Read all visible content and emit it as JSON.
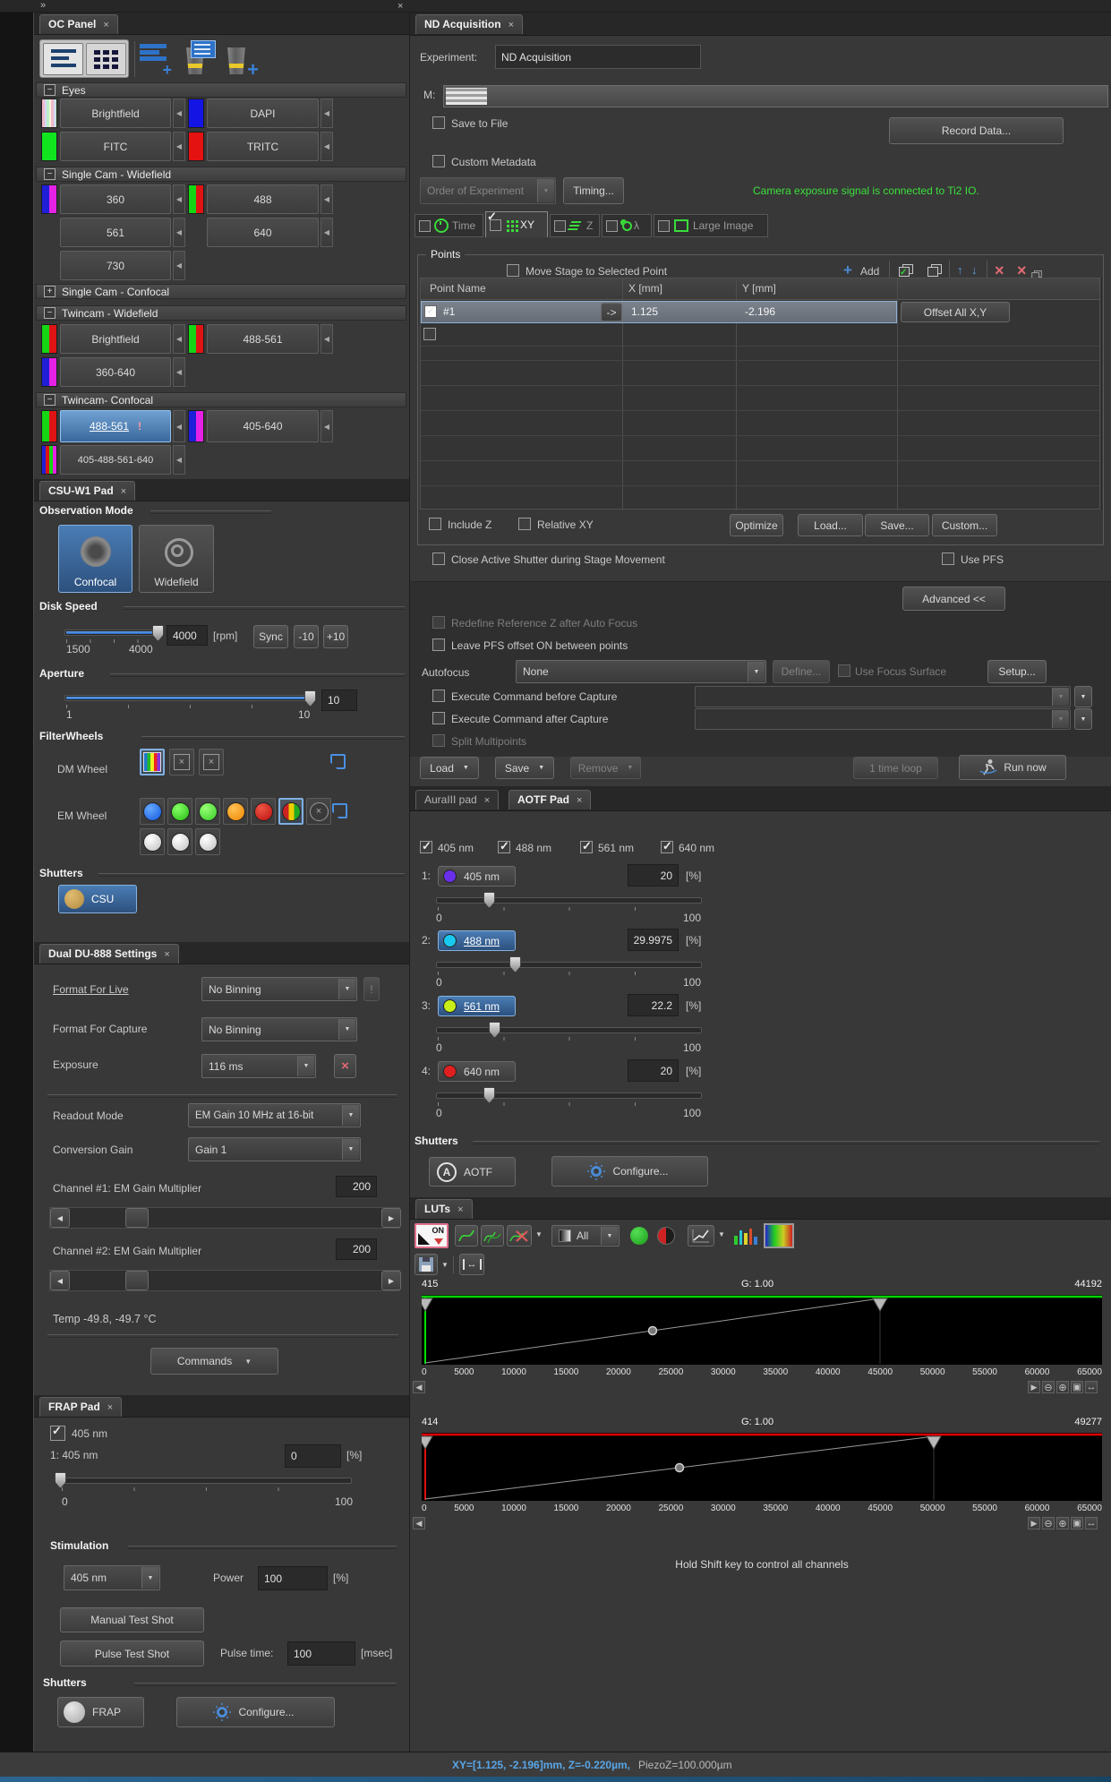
{
  "icons": {
    "collapse": "»",
    "close": "×",
    "prev": "◀",
    "dropdown": "▼",
    "plus": "+",
    "up": "↑",
    "down": "↓",
    "cross": "×",
    "goto": "->",
    "warn": "!",
    "scroll_left": "◀",
    "scroll_right": "▶",
    "zoom_out": "⊖",
    "zoom_in": "⊕",
    "expand": "▣",
    "fit": "↔",
    "minus_box": "−",
    "plus_box": "+",
    "circled_a": "A",
    "advanced_arrows": "<<",
    "on_label": "ON"
  },
  "colors": {
    "selection_blue": "#3f6f9f",
    "selection_border": "#8fc0f0",
    "green_status": "#3be03b",
    "status_xy_blue": "#58a6e8",
    "hist_green": "#00d400",
    "hist_red": "#e00000",
    "laser_405": "#6a2fe8",
    "laser_488": "#18c8f0",
    "laser_561": "#c8f018",
    "laser_640": "#e02020",
    "csu_shutter_gold": "#c9a34f",
    "accent_blue": "#4a8ad4"
  },
  "oc_panel": {
    "tab": "OC Panel",
    "close": "×",
    "groups": {
      "eyes": "Eyes",
      "single_widefield": "Single Cam - Widefield",
      "single_confocal": "Single Cam - Confocal",
      "twincam_widefield": "Twincam - Widefield",
      "twincam_confocal": "Twincam- Confocal"
    },
    "buttons": {
      "brightfield": "Brightfield",
      "dapi": "DAPI",
      "fitc": "FITC",
      "tritc": "TRITC",
      "w360": "360",
      "w488": "488",
      "w561": "561",
      "w640": "640",
      "w730": "730",
      "tw_brightfield": "Brightfield",
      "tw_488_561": "488-561",
      "tw_360_640": "360-640",
      "tc_488_561": "488-561",
      "tc_alert": "!",
      "tc_405_640": "405-640",
      "tc_405_488_561_640": "405-488-561-640"
    }
  },
  "csu": {
    "tab": "CSU-W1 Pad",
    "close": "×",
    "observation_mode": "Observation Mode",
    "confocal": "Confocal",
    "widefield": "Widefield",
    "disk_speed": {
      "label": "Disk Speed",
      "min": "1500",
      "max": "4000",
      "value": "4000",
      "unit": "[rpm]",
      "sync": "Sync",
      "minus": "-10",
      "plus": "+10"
    },
    "aperture": {
      "label": "Aperture",
      "min": "1",
      "max": "10",
      "value": "10"
    },
    "filterwheels": {
      "label": "FilterWheels",
      "dm": "DM Wheel",
      "em": "EM Wheel"
    },
    "shutters": {
      "label": "Shutters",
      "csu": "CSU"
    }
  },
  "du888": {
    "tab": "Dual DU-888 Settings",
    "close": "×",
    "format_live": {
      "label": "Format For Live",
      "value": "No Binning"
    },
    "format_capture": {
      "label": "Format For Capture",
      "value": "No Binning"
    },
    "exposure": {
      "label": "Exposure",
      "value": "116 ms"
    },
    "readout": {
      "label": "Readout Mode",
      "value": "EM Gain 10 MHz at 16-bit"
    },
    "conversion": {
      "label": "Conversion Gain",
      "value": "Gain 1"
    },
    "ch1": {
      "label": "Channel #1: EM Gain Multiplier",
      "value": "200"
    },
    "ch2": {
      "label": "Channel #2: EM Gain Multiplier",
      "value": "200"
    },
    "temp": "Temp -49.8, -49.7 °C",
    "commands": "Commands"
  },
  "frap": {
    "tab": "FRAP Pad",
    "close": "×",
    "laser": "405 nm",
    "line": "1: 405 nm",
    "value": "0",
    "pct": "[%]",
    "min": "0",
    "max": "100",
    "stimulation": "Stimulation",
    "combo": "405 nm",
    "power_label": "Power",
    "power": "100",
    "manual": "Manual Test Shot",
    "pulse": "Pulse Test Shot",
    "pulse_time_label": "Pulse time:",
    "pulse_time": "100",
    "pulse_unit": "[msec]",
    "shutters": "Shutters",
    "frap_btn": "FRAP",
    "configure": "Configure..."
  },
  "nd": {
    "tab": "ND Acquisition",
    "close": "×",
    "experiment_label": "Experiment:",
    "experiment": "ND Acquisition",
    "m_label": "M:",
    "save_to_file": "Save to File",
    "record": "Record Data...",
    "custom_metadata": "Custom Metadata",
    "order": "Order of Experiment",
    "timing": "Timing...",
    "status_green": "Camera exposure signal is connected to Ti2 IO.",
    "tabs": {
      "time": "Time",
      "xy": "XY",
      "z": "Z",
      "lambda": "λ",
      "large": "Large Image"
    },
    "points": {
      "title": "Points",
      "move_stage": "Move Stage to Selected Point",
      "add": "Add",
      "col_name": "Point Name",
      "col_x": "X [mm]",
      "col_y": "Y [mm]",
      "row": {
        "name": "#1",
        "goto": "->",
        "x": "1.125",
        "y": "-2.196",
        "offset": "Offset All X,Y"
      },
      "include_z": "Include Z",
      "relative_xy": "Relative XY",
      "optimize": "Optimize",
      "load": "Load...",
      "save": "Save...",
      "custom": "Custom..."
    },
    "close_shutter": "Close Active Shutter during Stage Movement",
    "use_pfs": "Use PFS",
    "advanced": "Advanced <<",
    "redefine": "Redefine Reference Z after Auto Focus",
    "leave_pfs": "Leave PFS offset ON between points",
    "autofocus_label": "Autofocus",
    "autofocus": "None",
    "define": "Define...",
    "use_focus_surface": "Use Focus Surface",
    "setup": "Setup...",
    "exec_before": "Execute Command before Capture",
    "exec_after": "Execute Command after Capture",
    "split": "Split Multipoints",
    "load2": "Load",
    "save2": "Save",
    "remove": "Remove",
    "loop": "1 time loop",
    "run": "Run now"
  },
  "aotf": {
    "tab_aura": "AuraIII pad",
    "tab_aotf": "AOTF Pad",
    "close": "×",
    "checks": [
      "405 nm",
      "488 nm",
      "561 nm",
      "640 nm"
    ],
    "channels": [
      {
        "idx": "1:",
        "label": "405 nm",
        "value": "20",
        "pct": "[%]",
        "min": "0",
        "max": "100",
        "percent": 20,
        "selected": false,
        "color": "#6a2fe8"
      },
      {
        "idx": "2:",
        "label": "488 nm",
        "value": "29.9975",
        "pct": "[%]",
        "min": "0",
        "max": "100",
        "percent": 30,
        "selected": true,
        "color": "#18c8f0"
      },
      {
        "idx": "3:",
        "label": "561 nm",
        "value": "22.2",
        "pct": "[%]",
        "min": "0",
        "max": "100",
        "percent": 22,
        "selected": true,
        "color": "#c8f018"
      },
      {
        "idx": "4:",
        "label": "640 nm",
        "value": "20",
        "pct": "[%]",
        "min": "0",
        "max": "100",
        "percent": 20,
        "selected": false,
        "color": "#e02020"
      }
    ],
    "shutters": "Shutters",
    "aotf_btn": "AOTF",
    "configure": "Configure..."
  },
  "luts": {
    "tab": "LUTs",
    "close": "×",
    "combo": "All",
    "hint": "Hold Shift key to control all channels",
    "axis_ticks": [
      "0",
      "5000",
      "10000",
      "15000",
      "20000",
      "25000",
      "30000",
      "35000",
      "40000",
      "45000",
      "50000",
      "55000",
      "60000",
      "65000"
    ],
    "hist1": {
      "black": "415",
      "gamma": "G: 1.00",
      "white": "44192",
      "color": "#00d400"
    },
    "hist2": {
      "black": "414",
      "gamma": "G: 1.00",
      "white": "49277",
      "color": "#e00000"
    }
  },
  "status_bar": {
    "xy": "XY=[1.125, -2.196]mm, Z=-0.220µm,",
    "piezo": " PiezoZ=100.000µm"
  }
}
